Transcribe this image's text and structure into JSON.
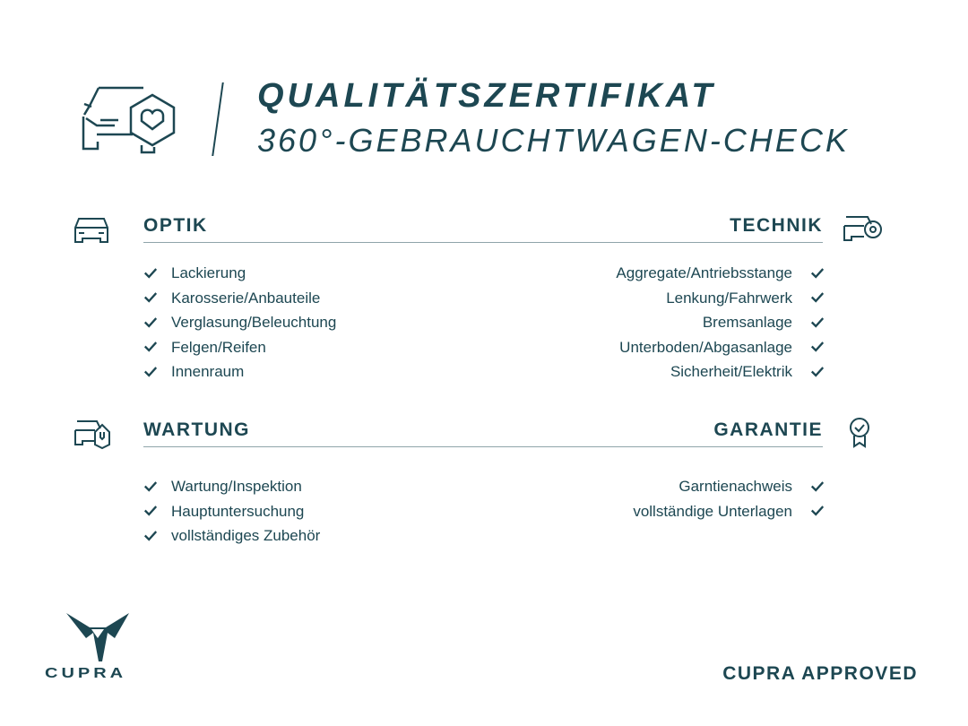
{
  "header": {
    "title": "QUALITÄTSZERTIFIKAT",
    "subtitle": "360°-GEBRAUCHTWAGEN-CHECK"
  },
  "sections": {
    "optik": {
      "title": "OPTIK",
      "items": [
        "Lackierung",
        "Karosserie/Anbauteile",
        "Verglasung/Beleuchtung",
        "Felgen/Reifen",
        "Innenraum"
      ]
    },
    "technik": {
      "title": "TECHNIK",
      "items": [
        "Aggregate/Antriebsstange",
        "Lenkung/Fahrwerk",
        "Bremsanlage",
        "Unterboden/Abgasanlage",
        "Sicherheit/Elektrik"
      ]
    },
    "wartung": {
      "title": "WARTUNG",
      "items": [
        "Wartung/Inspektion",
        "Hauptuntersuchung",
        "vollständiges Zubehör"
      ]
    },
    "garantie": {
      "title": "GARANTIE",
      "items": [
        "Garntienachweis",
        "vollständige Unterlagen"
      ]
    }
  },
  "footer": {
    "logo_text": "CUPRA",
    "approved": "CUPRA APPROVED"
  },
  "colors": {
    "primary": "#1d4752"
  }
}
